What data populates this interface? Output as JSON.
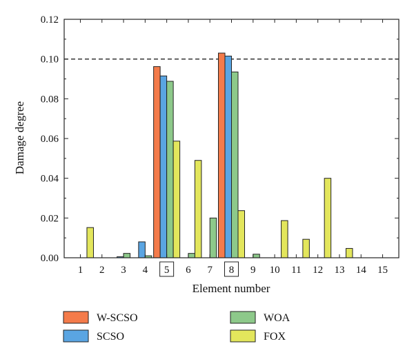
{
  "chart_data": {
    "type": "bar",
    "xlabel": "Element number",
    "ylabel": "Damage degree",
    "categories": [
      "1",
      "2",
      "3",
      "4",
      "5",
      "6",
      "7",
      "8",
      "9",
      "10",
      "11",
      "12",
      "13",
      "14",
      "15"
    ],
    "highlighted_categories": [
      "5",
      "8"
    ],
    "ylim": [
      0,
      0.12
    ],
    "yticks": [
      "0.00",
      "0.02",
      "0.04",
      "0.06",
      "0.08",
      "0.10",
      "0.12"
    ],
    "reference_line": {
      "y": 0.1,
      "style": "dashed"
    },
    "grid": false,
    "legend_position": "bottom",
    "series": [
      {
        "name": "W-SCSO",
        "color": "#f47b4a",
        "values": [
          0,
          0,
          0,
          0,
          0.0962,
          0,
          0,
          0.103,
          0,
          0,
          0,
          0,
          0,
          0,
          0
        ]
      },
      {
        "name": "SCSO",
        "color": "#5aa5e2",
        "values": [
          0,
          0,
          0.0005,
          0.008,
          0.0915,
          0,
          0,
          0.1015,
          0,
          0,
          0,
          0,
          0,
          0,
          0
        ]
      },
      {
        "name": "WOA",
        "color": "#8dc98a",
        "values": [
          0,
          0,
          0.0022,
          0.001,
          0.0888,
          0.0022,
          0.02,
          0.0935,
          0.0018,
          0,
          0,
          0,
          0,
          0,
          0
        ]
      },
      {
        "name": "FOX",
        "color": "#e3e65c",
        "values": [
          0.0152,
          0,
          0,
          0,
          0.0587,
          0.049,
          0,
          0.0237,
          0,
          0.0187,
          0.0093,
          0.04,
          0.0047,
          0,
          0
        ]
      }
    ]
  }
}
